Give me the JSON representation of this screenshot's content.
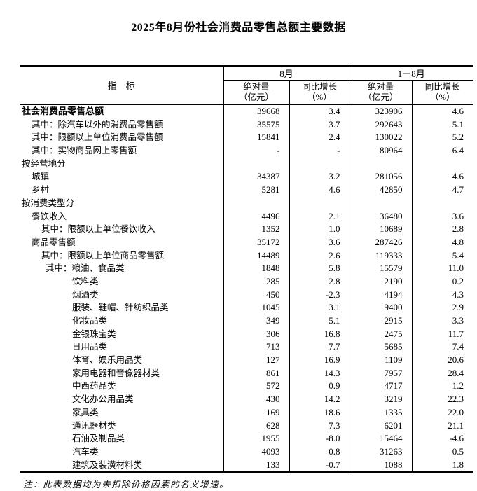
{
  "title": "2025年8月份社会消费品零售总额主要数据",
  "note": "注：此表数据均为未扣除价格因素的名义增速。",
  "colors": {
    "text": "#000000",
    "border": "#000000",
    "background": "#ffffff"
  },
  "table": {
    "header": {
      "indicator": "指　标",
      "groups": [
        {
          "label": "8月"
        },
        {
          "label": "1－8月"
        }
      ],
      "subheaders": [
        {
          "line1": "绝对量",
          "line2": "（亿元）"
        },
        {
          "line1": "同比增长",
          "line2": "（%）"
        },
        {
          "line1": "绝对量",
          "line2": "（亿元）"
        },
        {
          "line1": "同比增长",
          "line2": "（%）"
        }
      ]
    },
    "rows": [
      {
        "label": "社会消费品零售总额",
        "indent": 0,
        "bold": true,
        "values": [
          "39668",
          "3.4",
          "323906",
          "4.6"
        ]
      },
      {
        "label": "其中：除汽车以外的消费品零售额",
        "indent": 1,
        "bold": false,
        "values": [
          "35575",
          "3.7",
          "292643",
          "5.1"
        ]
      },
      {
        "label": "其中：限额以上单位消费品零售额",
        "indent": 1,
        "bold": false,
        "values": [
          "15841",
          "2.4",
          "130022",
          "5.2"
        ]
      },
      {
        "label": "其中：实物商品网上零售额",
        "indent": 1,
        "bold": false,
        "values": [
          "-",
          "-",
          "80964",
          "6.4"
        ]
      },
      {
        "label": "按经营地分",
        "indent": 0,
        "bold": false,
        "values": [
          "",
          "",
          "",
          ""
        ]
      },
      {
        "label": "城镇",
        "indent": 1,
        "bold": false,
        "values": [
          "34387",
          "3.2",
          "281056",
          "4.6"
        ]
      },
      {
        "label": "乡村",
        "indent": 1,
        "bold": false,
        "values": [
          "5281",
          "4.6",
          "42850",
          "4.7"
        ]
      },
      {
        "label": "按消费类型分",
        "indent": 0,
        "bold": false,
        "values": [
          "",
          "",
          "",
          ""
        ]
      },
      {
        "label": "餐饮收入",
        "indent": 1,
        "bold": false,
        "values": [
          "4496",
          "2.1",
          "36480",
          "3.6"
        ]
      },
      {
        "label": "其中：限额以上单位餐饮收入",
        "indent": 2,
        "bold": false,
        "values": [
          "1352",
          "1.0",
          "10689",
          "2.8"
        ]
      },
      {
        "label": "商品零售额",
        "indent": 1,
        "bold": false,
        "values": [
          "35172",
          "3.6",
          "287426",
          "4.8"
        ]
      },
      {
        "label": "其中：限额以上单位商品零售额",
        "indent": 2,
        "bold": false,
        "values": [
          "14489",
          "2.6",
          "119333",
          "5.4"
        ]
      },
      {
        "label": "其中：粮油、食品类",
        "indent": 3,
        "bold": false,
        "values": [
          "1848",
          "5.8",
          "15579",
          "11.0"
        ]
      },
      {
        "label": "饮料类",
        "indent": 4,
        "bold": false,
        "values": [
          "285",
          "2.8",
          "2190",
          "0.2"
        ]
      },
      {
        "label": "烟酒类",
        "indent": 4,
        "bold": false,
        "values": [
          "450",
          "-2.3",
          "4194",
          "4.3"
        ]
      },
      {
        "label": "服装、鞋帽、针纺织品类",
        "indent": 4,
        "bold": false,
        "values": [
          "1045",
          "3.1",
          "9400",
          "2.9"
        ]
      },
      {
        "label": "化妆品类",
        "indent": 4,
        "bold": false,
        "values": [
          "349",
          "5.1",
          "2915",
          "3.3"
        ]
      },
      {
        "label": "金银珠宝类",
        "indent": 4,
        "bold": false,
        "values": [
          "306",
          "16.8",
          "2475",
          "11.7"
        ]
      },
      {
        "label": "日用品类",
        "indent": 4,
        "bold": false,
        "values": [
          "713",
          "7.7",
          "5685",
          "7.4"
        ]
      },
      {
        "label": "体育、娱乐用品类",
        "indent": 4,
        "bold": false,
        "values": [
          "127",
          "16.9",
          "1109",
          "20.6"
        ]
      },
      {
        "label": "家用电器和音像器材类",
        "indent": 4,
        "bold": false,
        "values": [
          "861",
          "14.3",
          "7957",
          "28.4"
        ]
      },
      {
        "label": "中西药品类",
        "indent": 4,
        "bold": false,
        "values": [
          "572",
          "0.9",
          "4717",
          "1.2"
        ]
      },
      {
        "label": "文化办公用品类",
        "indent": 4,
        "bold": false,
        "values": [
          "430",
          "14.2",
          "3219",
          "22.3"
        ]
      },
      {
        "label": "家具类",
        "indent": 4,
        "bold": false,
        "values": [
          "169",
          "18.6",
          "1335",
          "22.0"
        ]
      },
      {
        "label": "通讯器材类",
        "indent": 4,
        "bold": false,
        "values": [
          "628",
          "7.3",
          "6201",
          "21.1"
        ]
      },
      {
        "label": "石油及制品类",
        "indent": 4,
        "bold": false,
        "values": [
          "1955",
          "-8.0",
          "15464",
          "-4.6"
        ]
      },
      {
        "label": "汽车类",
        "indent": 4,
        "bold": false,
        "values": [
          "4093",
          "0.8",
          "31263",
          "0.5"
        ]
      },
      {
        "label": "建筑及装潢材料类",
        "indent": 4,
        "bold": false,
        "values": [
          "133",
          "-0.7",
          "1088",
          "1.8"
        ]
      }
    ]
  }
}
